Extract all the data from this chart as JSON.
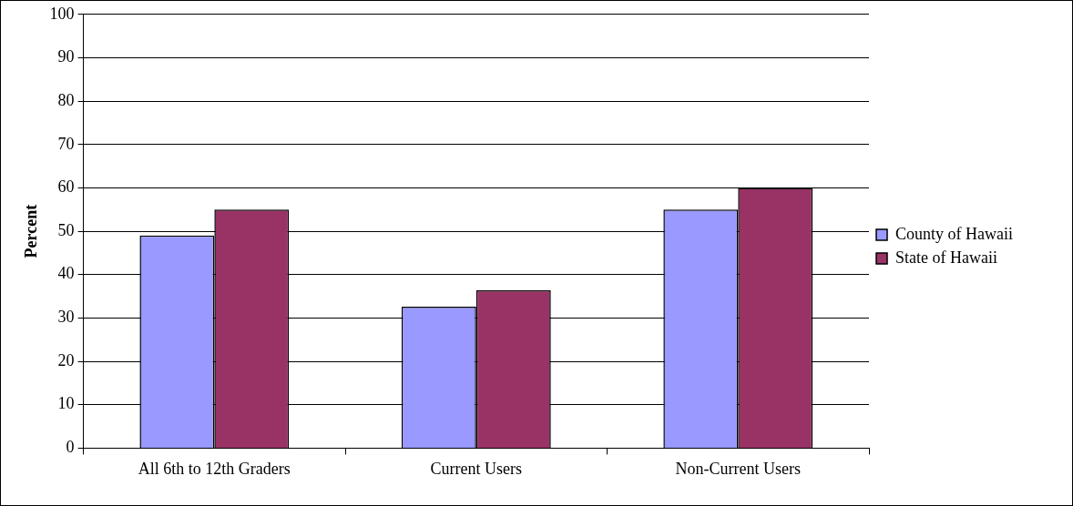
{
  "chart_data": {
    "type": "bar",
    "ylabel": "Percent",
    "categories": [
      "All 6th to 12th Graders",
      "Current Users",
      "Non-Current Users"
    ],
    "series": [
      {
        "name": "County of Hawaii",
        "color": "#9999ff",
        "values": [
          49,
          32.6,
          55
        ]
      },
      {
        "name": "State of Hawaii",
        "color": "#993366",
        "values": [
          55,
          36.4,
          60
        ]
      }
    ],
    "ylim": [
      0,
      100
    ],
    "yticks": [
      0,
      10,
      20,
      30,
      40,
      50,
      60,
      70,
      80,
      90,
      100
    ],
    "grid": "y",
    "legend": "right"
  }
}
